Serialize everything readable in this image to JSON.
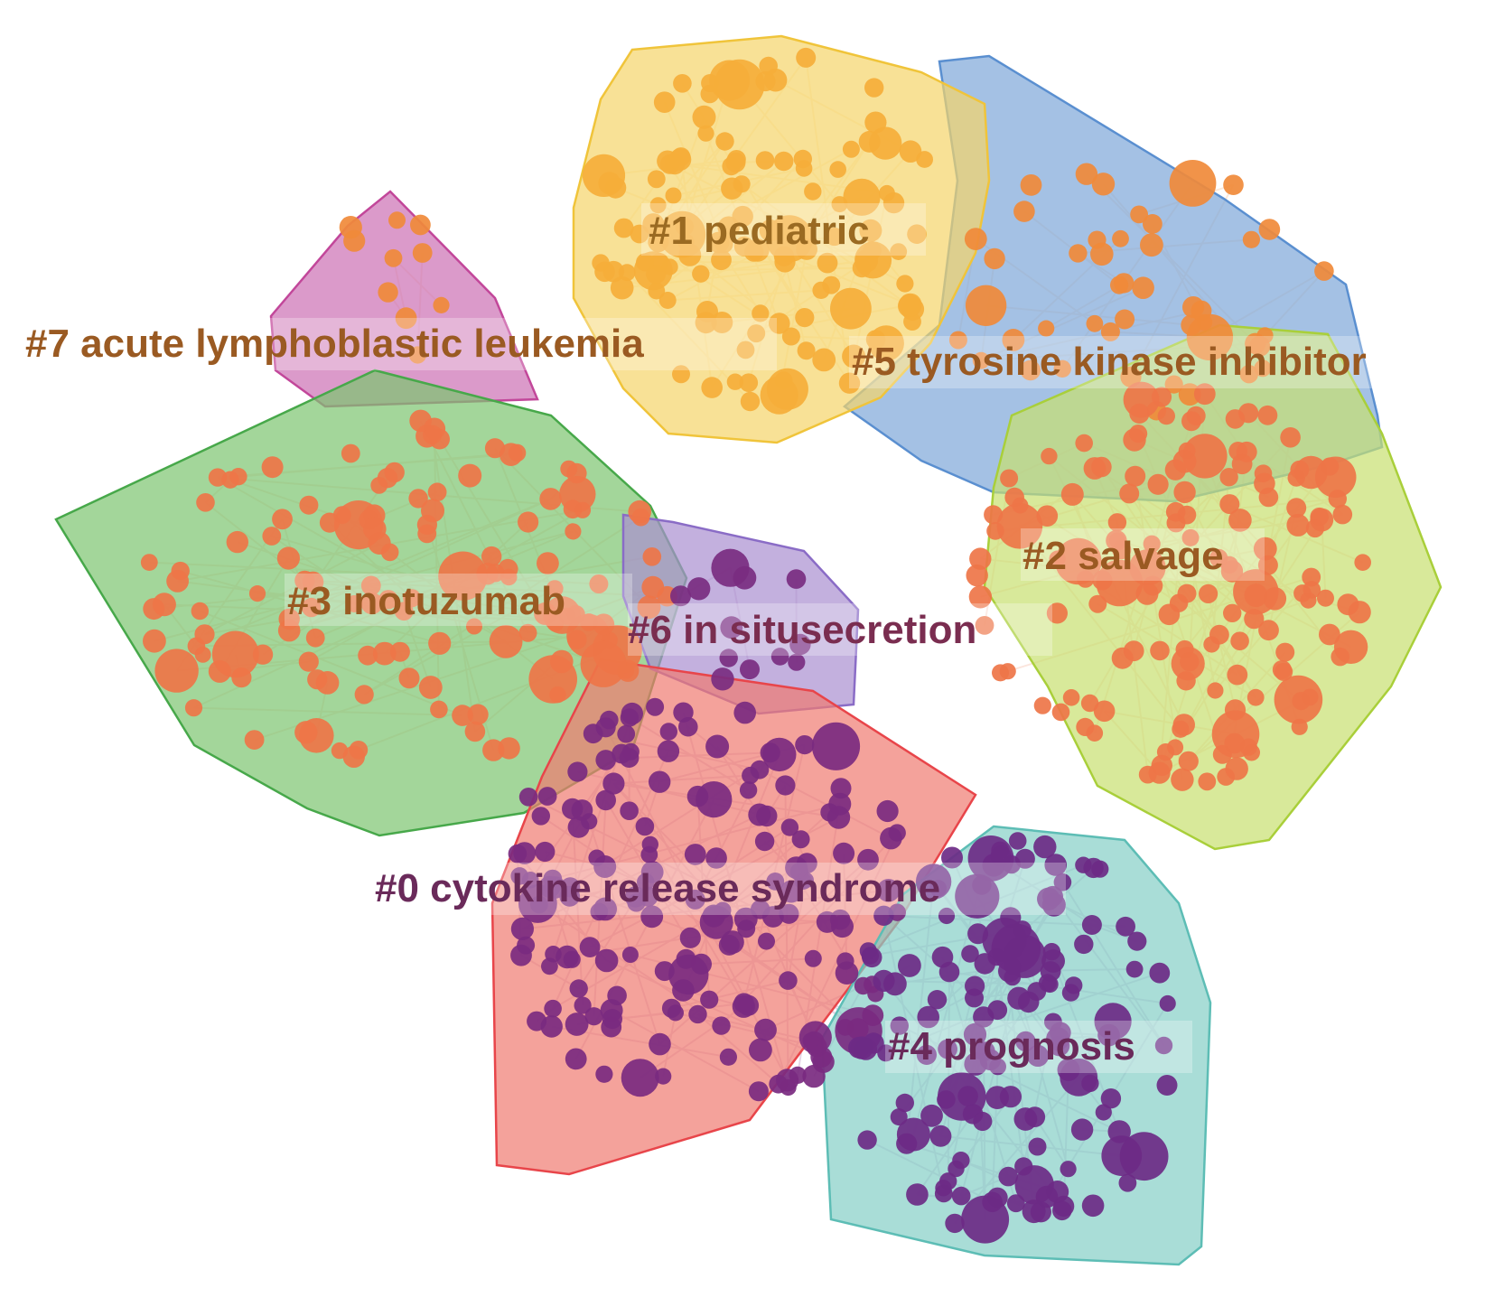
{
  "clusters": [
    {
      "id": "c7",
      "label": "#7 acute lymphoblastic leukemia",
      "fill": "#cc6fb3",
      "stroke": "#c2479a",
      "node_color": "#f08a3a",
      "label_color": "#9a5a22"
    },
    {
      "id": "c3",
      "label": "#3 inotuzumab",
      "fill": "#7cc46f",
      "stroke": "#47a84a",
      "node_color": "#ee7548",
      "label_color": "#9a5a22"
    },
    {
      "id": "c6",
      "label": "#6 in situsecretion",
      "fill": "#a98fd0",
      "stroke": "#8a6cc6",
      "node_color": "#7a2d80",
      "label_color": "#7a2d50"
    },
    {
      "id": "c0",
      "label": "#0 cytokine release syndrome",
      "fill": "#f07a70",
      "stroke": "#e8454a",
      "node_color": "#7a2a80",
      "label_color": "#6a2a5a"
    },
    {
      "id": "c4",
      "label": "#4 prognosis",
      "fill": "#85cec6",
      "stroke": "#5dbdb5",
      "node_color": "#6c2a86",
      "label_color": "#6a2a5a"
    },
    {
      "id": "c5",
      "label": "#5 tyrosine kinase inhibitor",
      "fill": "#7ea6d8",
      "stroke": "#5a8fd0",
      "node_color": "#f08a3a",
      "label_color": "#9a5a22"
    },
    {
      "id": "c2",
      "label": "#2 salvage",
      "fill": "#c7df6f",
      "stroke": "#a9cf3a",
      "node_color": "#ee7548",
      "label_color": "#9a5a22"
    },
    {
      "id": "c1",
      "label": "#1 pediatric",
      "fill": "#f5d46a",
      "stroke": "#f0c43a",
      "node_color": "#f5ae3a",
      "label_color": "#9a6a22"
    }
  ]
}
